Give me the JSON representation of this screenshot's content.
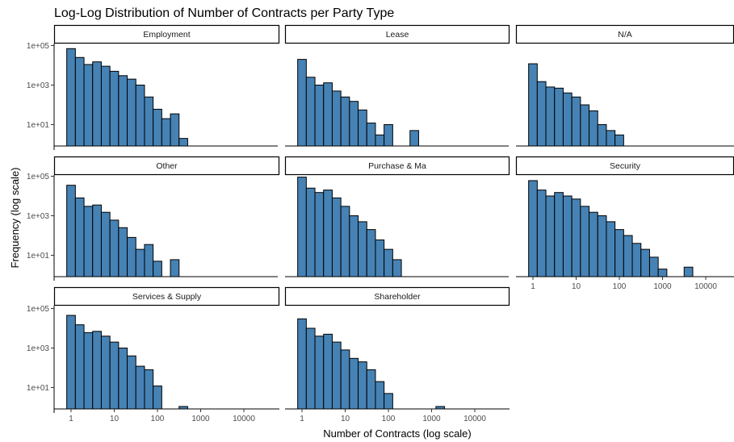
{
  "chart_data": {
    "type": "bar",
    "title": "Log-Log Distribution of Number of Contracts per Party Type",
    "xlabel": "Number of Contracts (log scale)",
    "ylabel": "Frequency (log scale)",
    "x_scale": "log10",
    "y_scale": "log10",
    "x_ticks": [
      "1",
      "10",
      "100",
      "1000",
      "10000"
    ],
    "y_ticks": [
      "1e+01",
      "1e+03",
      "1e+05"
    ],
    "bar_color": "#4682b4",
    "bin_width_log10": 0.2,
    "first_bin_center_log10": 0,
    "panels": [
      {
        "label": "Employment",
        "values": [
          70000,
          25000,
          11000,
          15000,
          9000,
          5000,
          3000,
          2000,
          1000,
          250,
          60,
          20,
          35,
          2
        ]
      },
      {
        "label": "Lease",
        "values": [
          20000,
          2500,
          1000,
          1300,
          500,
          250,
          150,
          55,
          12,
          3,
          10,
          null,
          null,
          5
        ]
      },
      {
        "label": "N/A",
        "values": [
          12000,
          1500,
          800,
          700,
          400,
          250,
          100,
          50,
          10,
          5,
          3
        ]
      },
      {
        "label": "Other",
        "values": [
          35000,
          8000,
          3000,
          3500,
          1500,
          600,
          250,
          80,
          20,
          35,
          5,
          null,
          6
        ]
      },
      {
        "label": "Purchase & Ma",
        "values": [
          90000,
          25000,
          15000,
          20000,
          8000,
          3000,
          1000,
          500,
          200,
          60,
          20,
          6
        ]
      },
      {
        "label": "Security",
        "values": [
          60000,
          20000,
          10000,
          15000,
          10000,
          7000,
          3000,
          1500,
          1000,
          500,
          200,
          100,
          40,
          20,
          8,
          2,
          null,
          null,
          2.5
        ]
      },
      {
        "label": "Services & Supply",
        "values": [
          45000,
          15000,
          6000,
          7000,
          4000,
          2000,
          1000,
          400,
          120,
          80,
          12,
          null,
          null,
          1.1
        ]
      },
      {
        "label": "Shareholder",
        "values": [
          30000,
          10000,
          4000,
          5000,
          2000,
          800,
          300,
          200,
          80,
          20,
          5,
          null,
          null,
          null,
          null,
          null,
          1.1
        ]
      }
    ]
  }
}
